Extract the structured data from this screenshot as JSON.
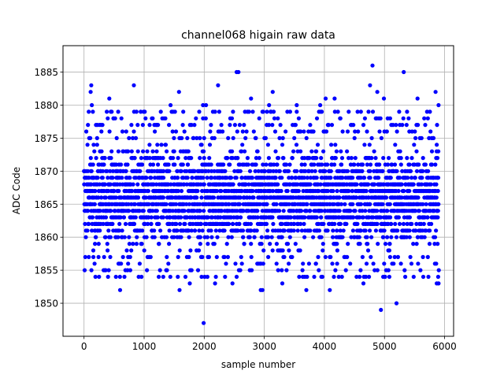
{
  "chart_data": {
    "type": "scatter",
    "title": "channel068 higain raw data",
    "xlabel": "sample number",
    "ylabel": "ADC Code",
    "xlim": [
      -350,
      6150
    ],
    "ylim": [
      1845,
      1889
    ],
    "x_ticks": [
      0,
      1000,
      2000,
      3000,
      4000,
      5000,
      6000
    ],
    "y_ticks": [
      1850,
      1855,
      1860,
      1865,
      1870,
      1875,
      1880,
      1885
    ],
    "grid": true,
    "marker_color": "#0000ff",
    "n_samples": 5900,
    "dense_band": [
      1856,
      1874
    ],
    "series": [
      {
        "outlier_points": [
          [
            120,
            1883
          ],
          [
            110,
            1882
          ],
          [
            420,
            1881
          ],
          [
            830,
            1883
          ],
          [
            1580,
            1882
          ],
          [
            1440,
            1880
          ],
          [
            1980,
            1880
          ],
          [
            2030,
            1880
          ],
          [
            2230,
            1883
          ],
          [
            2540,
            1885
          ],
          [
            2570,
            1885
          ],
          [
            2780,
            1881
          ],
          [
            3080,
            1880
          ],
          [
            3140,
            1882
          ],
          [
            3540,
            1880
          ],
          [
            3930,
            1880
          ],
          [
            4020,
            1881
          ],
          [
            4170,
            1881
          ],
          [
            4800,
            1886
          ],
          [
            4760,
            1883
          ],
          [
            4880,
            1882
          ],
          [
            4990,
            1881
          ],
          [
            5320,
            1885
          ],
          [
            5550,
            1881
          ],
          [
            5850,
            1882
          ],
          [
            5900,
            1880
          ],
          [
            130,
            1880
          ],
          [
            600,
            1852
          ],
          [
            1590,
            1852
          ],
          [
            1760,
            1853
          ],
          [
            1990,
            1847
          ],
          [
            2180,
            1853
          ],
          [
            2470,
            1853
          ],
          [
            2940,
            1852
          ],
          [
            2970,
            1852
          ],
          [
            3300,
            1853
          ],
          [
            3700,
            1852
          ],
          [
            4090,
            1852
          ],
          [
            4650,
            1853
          ],
          [
            4940,
            1849
          ],
          [
            5200,
            1850
          ],
          [
            5870,
            1853
          ],
          [
            5900,
            1853
          ],
          [
            190,
            1854
          ],
          [
            250,
            1854
          ],
          [
            400,
            1854
          ],
          [
            1380,
            1855
          ],
          [
            1790,
            1855
          ],
          [
            2600,
            1855
          ],
          [
            3580,
            1854
          ],
          [
            3640,
            1854
          ],
          [
            3950,
            1854
          ],
          [
            4690,
            1854
          ],
          [
            5010,
            1854
          ],
          [
            5080,
            1854
          ],
          [
            5730,
            1854
          ]
        ]
      }
    ]
  }
}
